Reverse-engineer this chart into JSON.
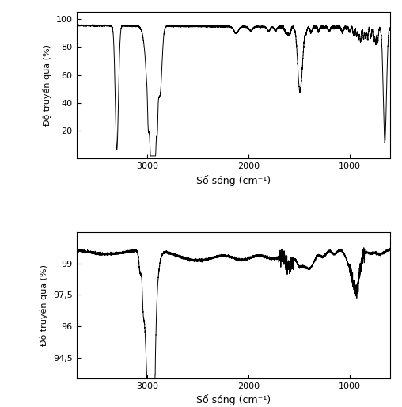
{
  "xlabel": "Số sóng (cm⁻¹)",
  "ylabel": "Độ truyền qua (%)",
  "xlim": [
    3700,
    600
  ],
  "chart1": {
    "ylim": [
      0,
      105
    ],
    "yticks": [
      20,
      40,
      60,
      80,
      100
    ]
  },
  "chart2": {
    "ylim": [
      93.5,
      100.5
    ],
    "yticks": [
      94.5,
      96,
      97.5,
      99
    ],
    "ytick_labels": [
      "94,5",
      "96",
      "97,5",
      "99"
    ]
  },
  "xticks": [
    3000,
    2000,
    1000
  ],
  "line_color": "#000000",
  "bg_color": "#ffffff",
  "line_width": 0.7
}
